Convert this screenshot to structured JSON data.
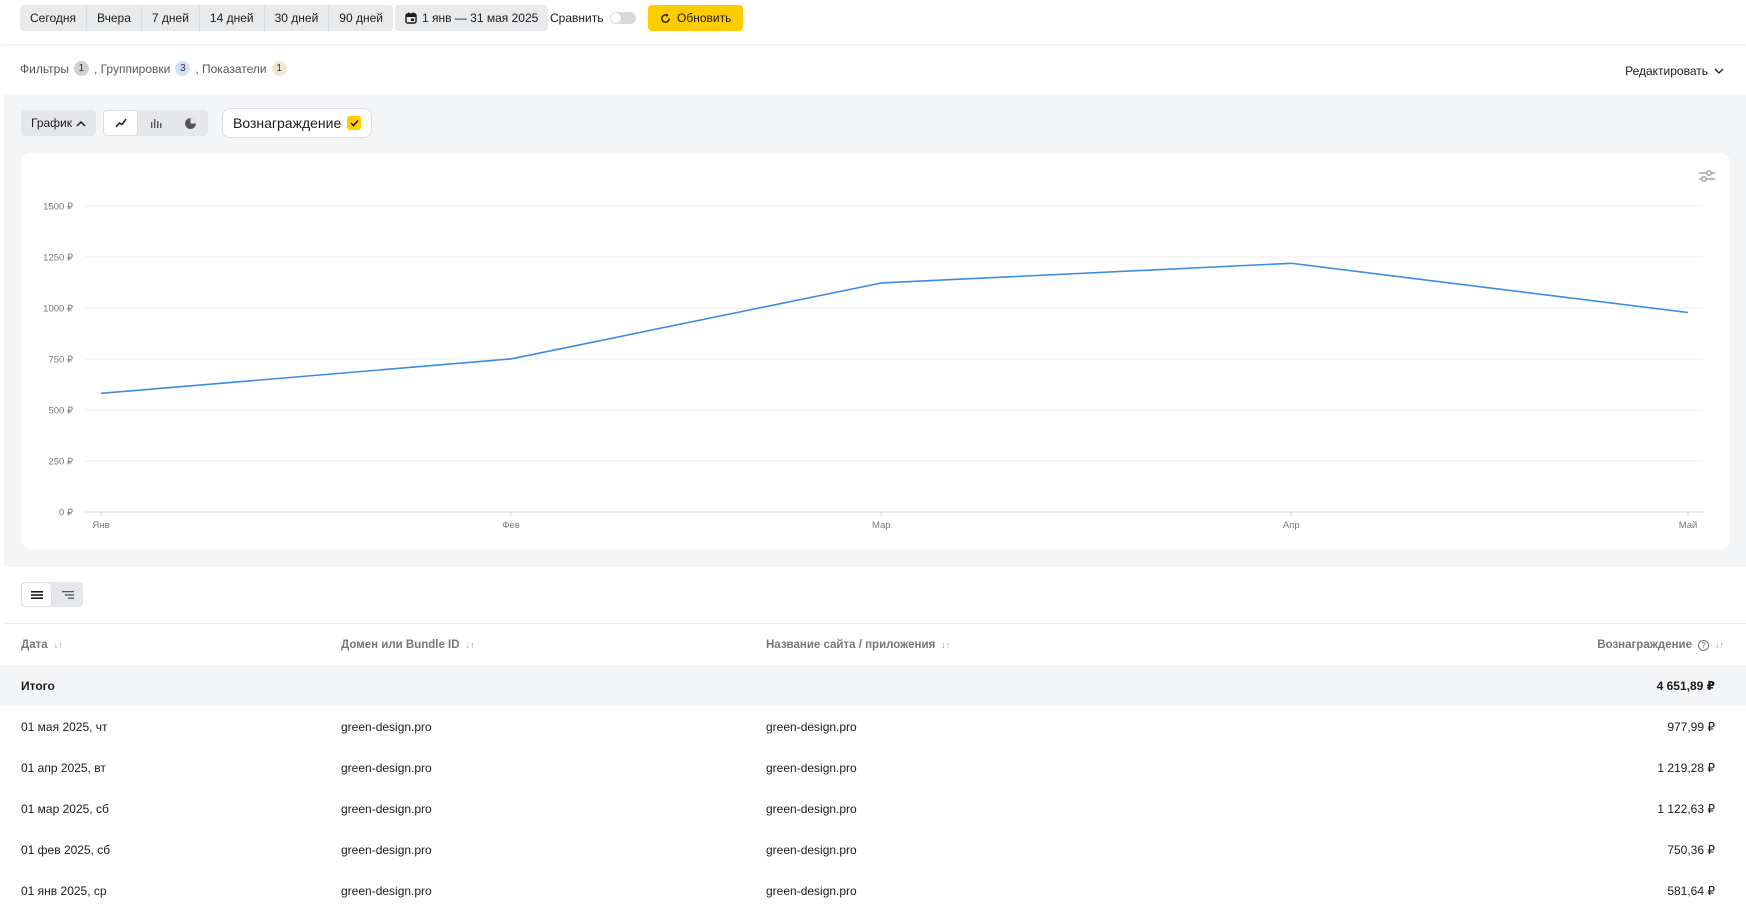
{
  "toolbar": {
    "periods": [
      "Сегодня",
      "Вчера",
      "7 дней",
      "14 дней",
      "30 дней",
      "90 дней"
    ],
    "date_range": "1 янв — 31 мая 2025",
    "compare_label": "Сравнить",
    "compare_enabled": false,
    "refresh_label": "Обновить",
    "accent_color": "#ffcc00"
  },
  "filters": {
    "filters_label": "Фильтры",
    "filters_count": "1",
    "groupings_label": ", Группировки",
    "groupings_count": "3",
    "metrics_label": ", Показатели",
    "metrics_count": "1",
    "edit_label": "Редактировать"
  },
  "chart_controls": {
    "graph_label": "График",
    "types": [
      "line-chart-icon",
      "bar-chart-icon",
      "pie-chart-icon"
    ],
    "active_type": "line",
    "metric_chip": "Вознаграждение"
  },
  "chart_data": {
    "type": "line",
    "categories": [
      "Янв",
      "Фев",
      "Мар",
      "Апр",
      "Май"
    ],
    "series": [
      {
        "name": "Вознаграждение",
        "values": [
          581.64,
          750.36,
          1122.63,
          1219.28,
          977.99
        ],
        "color": "#3b8be3"
      }
    ],
    "y_ticks": [
      "0 ₽",
      "250 ₽",
      "500 ₽",
      "750 ₽",
      "1000 ₽",
      "1250 ₽",
      "1500 ₽"
    ],
    "ylim": [
      0,
      1500
    ],
    "grid": true
  },
  "table": {
    "columns": [
      {
        "label": "Дата"
      },
      {
        "label": "Домен или Bundle ID"
      },
      {
        "label": "Название сайта / приложения"
      },
      {
        "label": "Вознаграждение"
      }
    ],
    "total": {
      "label": "Итого",
      "value": "4 651,89 ₽"
    },
    "rows": [
      {
        "date": "01 мая 2025, чт",
        "domain": "green-design.pro",
        "name": "green-design.pro",
        "reward": "977,99 ₽"
      },
      {
        "date": "01 апр 2025, вт",
        "domain": "green-design.pro",
        "name": "green-design.pro",
        "reward": "1 219,28 ₽"
      },
      {
        "date": "01 мар 2025, сб",
        "domain": "green-design.pro",
        "name": "green-design.pro",
        "reward": "1 122,63 ₽"
      },
      {
        "date": "01 фев 2025, сб",
        "domain": "green-design.pro",
        "name": "green-design.pro",
        "reward": "750,36 ₽"
      },
      {
        "date": "01 янв 2025, ср",
        "domain": "green-design.pro",
        "name": "green-design.pro",
        "reward": "581,64 ₽"
      }
    ]
  }
}
